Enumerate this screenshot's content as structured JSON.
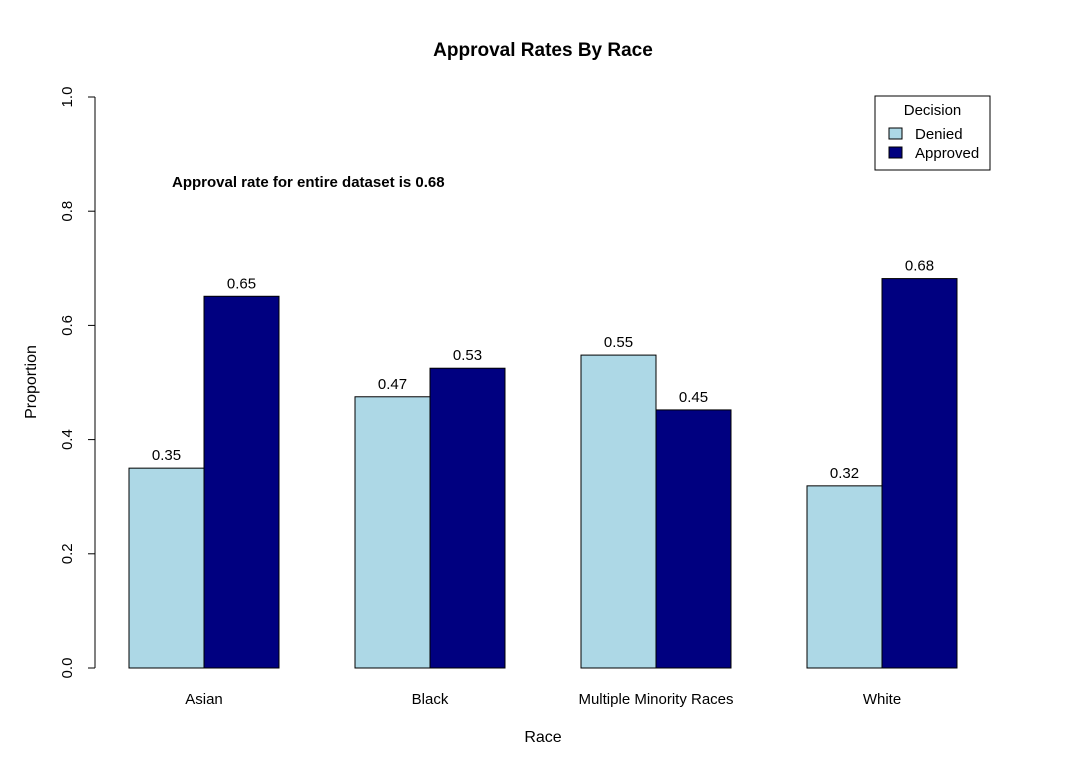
{
  "chart_data": {
    "type": "bar",
    "title": "Approval Rates By Race",
    "xlabel": "Race",
    "ylabel": "Proportion",
    "ylim": [
      0,
      1
    ],
    "yticks": [
      "0.0",
      "0.2",
      "0.4",
      "0.6",
      "0.8",
      "1.0"
    ],
    "categories": [
      "Asian",
      "Black",
      "Multiple Minority Races",
      "White"
    ],
    "series": [
      {
        "name": "Denied",
        "color": "#add8e6",
        "values": [
          0.35,
          0.475,
          0.548,
          0.319
        ],
        "labels": [
          "0.35",
          "0.47",
          "0.55",
          "0.32"
        ]
      },
      {
        "name": "Approved",
        "color": "#000080",
        "values": [
          0.651,
          0.525,
          0.452,
          0.682
        ],
        "labels": [
          "0.65",
          "0.53",
          "0.45",
          "0.68"
        ]
      }
    ],
    "annotation": "Approval rate for entire dataset is  0.68",
    "legend": {
      "title": "Decision",
      "position": "top-right"
    },
    "grid": false
  }
}
